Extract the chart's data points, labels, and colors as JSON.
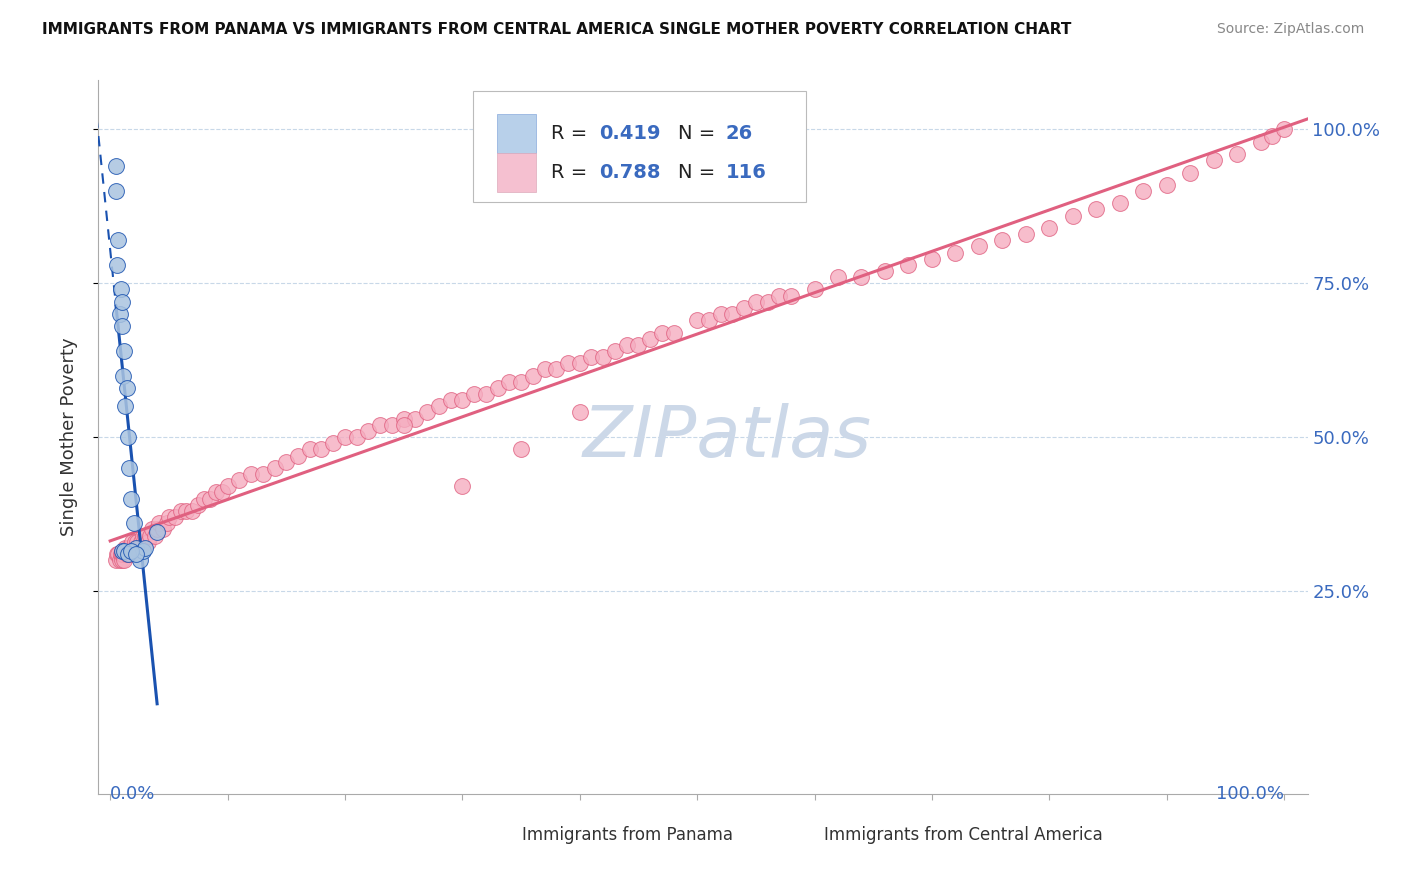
{
  "title": "IMMIGRANTS FROM PANAMA VS IMMIGRANTS FROM CENTRAL AMERICA SINGLE MOTHER POVERTY CORRELATION CHART",
  "source": "Source: ZipAtlas.com",
  "ylabel": "Single Mother Poverty",
  "panama_R": 0.419,
  "panama_N": 26,
  "central_R": 0.788,
  "central_N": 116,
  "panama_color": "#aac4e0",
  "central_color": "#f5adc0",
  "trendline_panama_color": "#1a52b0",
  "trendline_central_color": "#e06080",
  "legend_box_color_panama": "#b8d0ea",
  "legend_box_color_central": "#f5c0d0",
  "watermark_text": "ZIPatlas",
  "watermark_color": "#ccd8e8",
  "bg_color": "#ffffff",
  "title_color": "#111111",
  "source_color": "#888888",
  "axis_label_color": "#3a6abf",
  "ylabel_color": "#333333",
  "grid_color": "#c8d8e8",
  "spine_color": "#aaaaaa",
  "legend_label_color": "#222222",
  "legend_value_color": "#3a6abf",
  "bottom_legend_color": "#333333",
  "pan_x": [
    0.005,
    0.005,
    0.006,
    0.007,
    0.008,
    0.009,
    0.01,
    0.01,
    0.011,
    0.012,
    0.013,
    0.014,
    0.015,
    0.016,
    0.018,
    0.02,
    0.022,
    0.025,
    0.028,
    0.03,
    0.01,
    0.012,
    0.015,
    0.018,
    0.022,
    0.04
  ],
  "pan_y": [
    0.9,
    0.94,
    0.78,
    0.82,
    0.7,
    0.74,
    0.68,
    0.72,
    0.6,
    0.64,
    0.55,
    0.58,
    0.5,
    0.45,
    0.4,
    0.36,
    0.32,
    0.3,
    0.315,
    0.32,
    0.315,
    0.315,
    0.31,
    0.315,
    0.31,
    0.345
  ],
  "ca_x": [
    0.005,
    0.006,
    0.007,
    0.008,
    0.009,
    0.01,
    0.01,
    0.011,
    0.012,
    0.013,
    0.014,
    0.015,
    0.016,
    0.017,
    0.018,
    0.019,
    0.02,
    0.021,
    0.022,
    0.023,
    0.025,
    0.026,
    0.028,
    0.03,
    0.032,
    0.034,
    0.036,
    0.038,
    0.04,
    0.042,
    0.045,
    0.048,
    0.05,
    0.055,
    0.06,
    0.065,
    0.07,
    0.075,
    0.08,
    0.085,
    0.09,
    0.095,
    0.1,
    0.11,
    0.12,
    0.13,
    0.14,
    0.15,
    0.16,
    0.17,
    0.18,
    0.19,
    0.2,
    0.21,
    0.22,
    0.23,
    0.24,
    0.25,
    0.26,
    0.27,
    0.28,
    0.29,
    0.3,
    0.31,
    0.32,
    0.33,
    0.34,
    0.35,
    0.36,
    0.37,
    0.38,
    0.39,
    0.4,
    0.41,
    0.42,
    0.43,
    0.44,
    0.45,
    0.46,
    0.47,
    0.48,
    0.5,
    0.51,
    0.52,
    0.53,
    0.54,
    0.55,
    0.56,
    0.57,
    0.58,
    0.6,
    0.62,
    0.64,
    0.66,
    0.68,
    0.7,
    0.72,
    0.74,
    0.76,
    0.78,
    0.8,
    0.82,
    0.84,
    0.86,
    0.88,
    0.9,
    0.92,
    0.94,
    0.96,
    0.98,
    0.99,
    1.0,
    0.35,
    0.4,
    0.25,
    0.3
  ],
  "ca_y": [
    0.3,
    0.31,
    0.31,
    0.3,
    0.31,
    0.3,
    0.31,
    0.31,
    0.3,
    0.32,
    0.31,
    0.32,
    0.31,
    0.32,
    0.31,
    0.33,
    0.32,
    0.33,
    0.32,
    0.33,
    0.32,
    0.33,
    0.34,
    0.34,
    0.33,
    0.34,
    0.35,
    0.34,
    0.35,
    0.36,
    0.35,
    0.36,
    0.37,
    0.37,
    0.38,
    0.38,
    0.38,
    0.39,
    0.4,
    0.4,
    0.41,
    0.41,
    0.42,
    0.43,
    0.44,
    0.44,
    0.45,
    0.46,
    0.47,
    0.48,
    0.48,
    0.49,
    0.5,
    0.5,
    0.51,
    0.52,
    0.52,
    0.53,
    0.53,
    0.54,
    0.55,
    0.56,
    0.56,
    0.57,
    0.57,
    0.58,
    0.59,
    0.59,
    0.6,
    0.61,
    0.61,
    0.62,
    0.62,
    0.63,
    0.63,
    0.64,
    0.65,
    0.65,
    0.66,
    0.67,
    0.67,
    0.69,
    0.69,
    0.7,
    0.7,
    0.71,
    0.72,
    0.72,
    0.73,
    0.73,
    0.74,
    0.76,
    0.76,
    0.77,
    0.78,
    0.79,
    0.8,
    0.81,
    0.82,
    0.83,
    0.84,
    0.86,
    0.87,
    0.88,
    0.9,
    0.91,
    0.93,
    0.95,
    0.96,
    0.98,
    0.99,
    1.0,
    0.48,
    0.54,
    0.52,
    0.42
  ],
  "xlim": [
    -0.01,
    1.02
  ],
  "ylim": [
    -0.08,
    1.08
  ],
  "ytick_positions": [
    0.25,
    0.5,
    0.75,
    1.0
  ],
  "ytick_labels": [
    "25.0%",
    "50.0%",
    "75.0%",
    "100.0%"
  ],
  "xtick_left_label": "0.0%",
  "xtick_right_label": "100.0%"
}
